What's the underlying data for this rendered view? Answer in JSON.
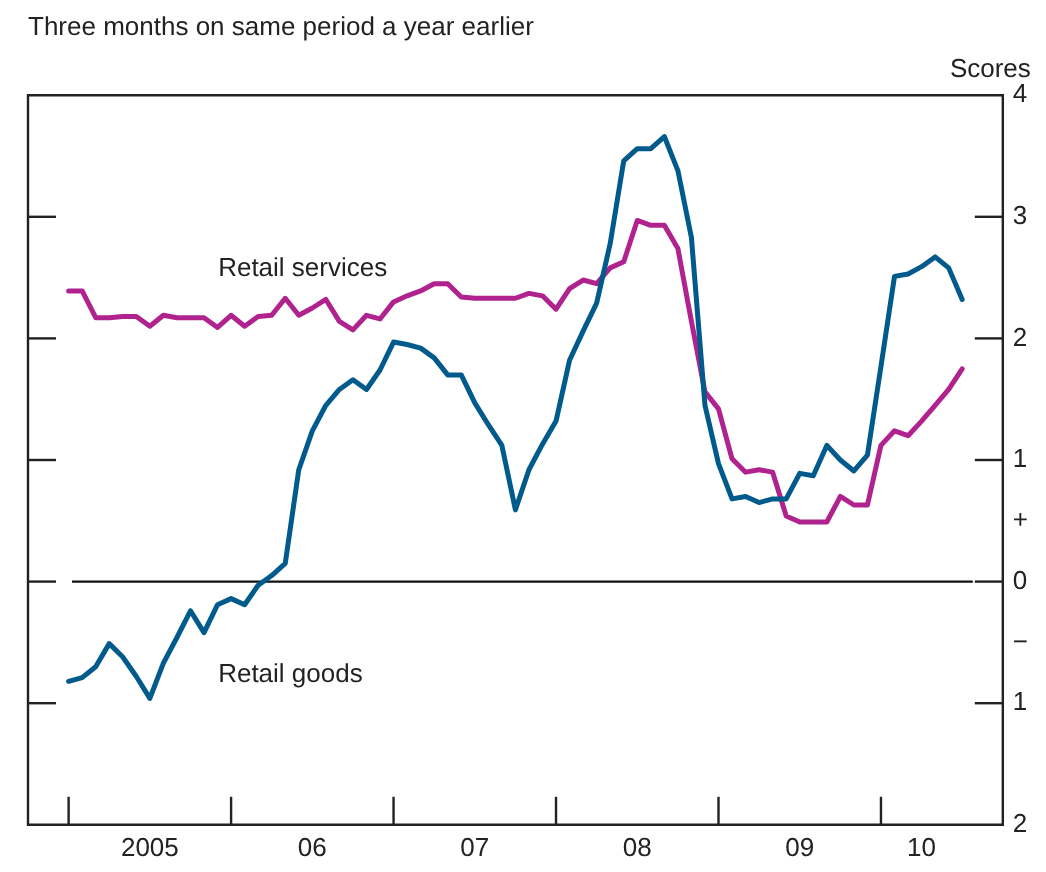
{
  "chart_data": {
    "type": "line",
    "title": "Three months on same period a year earlier",
    "ylabel": "Scores",
    "x": [
      "2005-01",
      "2005-02",
      "2005-03",
      "2005-04",
      "2005-05",
      "2005-06",
      "2005-07",
      "2005-08",
      "2005-09",
      "2005-10",
      "2005-11",
      "2005-12",
      "2006-01",
      "2006-02",
      "2006-03",
      "2006-04",
      "2006-05",
      "2006-06",
      "2006-07",
      "2006-08",
      "2006-09",
      "2006-10",
      "2006-11",
      "2006-12",
      "2007-01",
      "2007-02",
      "2007-03",
      "2007-04",
      "2007-05",
      "2007-06",
      "2007-07",
      "2007-08",
      "2007-09",
      "2007-10",
      "2007-11",
      "2007-12",
      "2008-01",
      "2008-02",
      "2008-03",
      "2008-04",
      "2008-05",
      "2008-06",
      "2008-07",
      "2008-08",
      "2008-09",
      "2008-10",
      "2008-11",
      "2008-12",
      "2009-01",
      "2009-02",
      "2009-03",
      "2009-04",
      "2009-05",
      "2009-06",
      "2009-07",
      "2009-08",
      "2009-09",
      "2009-10",
      "2009-11",
      "2009-12",
      "2010-01",
      "2010-02",
      "2010-03",
      "2010-04",
      "2010-05",
      "2010-06",
      "2010-07"
    ],
    "series": [
      {
        "name": "Retail goods",
        "color": "#005a8c",
        "values": [
          -0.82,
          -0.79,
          -0.7,
          -0.51,
          -0.62,
          -0.78,
          -0.96,
          -0.67,
          -0.46,
          -0.24,
          -0.42,
          -0.19,
          -0.14,
          -0.19,
          -0.03,
          0.05,
          0.15,
          0.92,
          1.24,
          1.45,
          1.58,
          1.66,
          1.58,
          1.74,
          1.97,
          1.95,
          1.92,
          1.84,
          1.7,
          1.7,
          1.47,
          1.29,
          1.12,
          0.59,
          0.92,
          1.13,
          1.32,
          1.82,
          2.06,
          2.29,
          2.78,
          3.46,
          3.56,
          3.56,
          3.66,
          3.38,
          2.83,
          1.45,
          0.97,
          0.68,
          0.7,
          0.65,
          0.68,
          0.68,
          0.89,
          0.87,
          1.12,
          1.0,
          0.91,
          1.04,
          1.77,
          2.51,
          2.53,
          2.59,
          2.67,
          2.58,
          2.32
        ]
      },
      {
        "name": "Retail services",
        "color": "#b0238e",
        "values": [
          2.39,
          2.39,
          2.17,
          2.17,
          2.18,
          2.18,
          2.1,
          2.19,
          2.17,
          2.17,
          2.17,
          2.09,
          2.19,
          2.1,
          2.18,
          2.19,
          2.33,
          2.19,
          2.25,
          2.32,
          2.14,
          2.07,
          2.19,
          2.16,
          2.3,
          2.35,
          2.39,
          2.45,
          2.45,
          2.34,
          2.33,
          2.33,
          2.33,
          2.33,
          2.37,
          2.35,
          2.24,
          2.41,
          2.48,
          2.45,
          2.58,
          2.63,
          2.97,
          2.93,
          2.93,
          2.74,
          2.14,
          1.56,
          1.42,
          1.01,
          0.9,
          0.92,
          0.9,
          0.54,
          0.49,
          0.49,
          0.49,
          0.7,
          0.63,
          0.63,
          1.12,
          1.24,
          1.2,
          1.32,
          1.45,
          1.58,
          1.75
        ]
      }
    ],
    "xlim": [
      "2004-10",
      "2010-10"
    ],
    "xticks": [
      {
        "value": "2005-01",
        "label": null
      },
      {
        "value": "2005-07",
        "label": "2005"
      },
      {
        "value": "2006-01",
        "label": null
      },
      {
        "value": "2006-07",
        "label": "06"
      },
      {
        "value": "2007-01",
        "label": null
      },
      {
        "value": "2007-07",
        "label": "07"
      },
      {
        "value": "2008-01",
        "label": null
      },
      {
        "value": "2008-07",
        "label": "08"
      },
      {
        "value": "2009-01",
        "label": null
      },
      {
        "value": "2009-07",
        "label": "09"
      },
      {
        "value": "2010-01",
        "label": null
      },
      {
        "value": "2010-04",
        "label": "10"
      }
    ],
    "ylim": [
      -2,
      4
    ],
    "yticks": [
      {
        "value": -2,
        "label": "2"
      },
      {
        "value": -1,
        "label": "1"
      },
      {
        "value": -0.5,
        "label": "−"
      },
      0,
      {
        "value": 0.5,
        "label": "+"
      },
      1,
      2,
      3,
      4
    ],
    "ref_lines": [
      {
        "axis": "y",
        "value": 0
      }
    ],
    "legend": false,
    "grid": false,
    "marker": "none",
    "line_style": "solid"
  }
}
